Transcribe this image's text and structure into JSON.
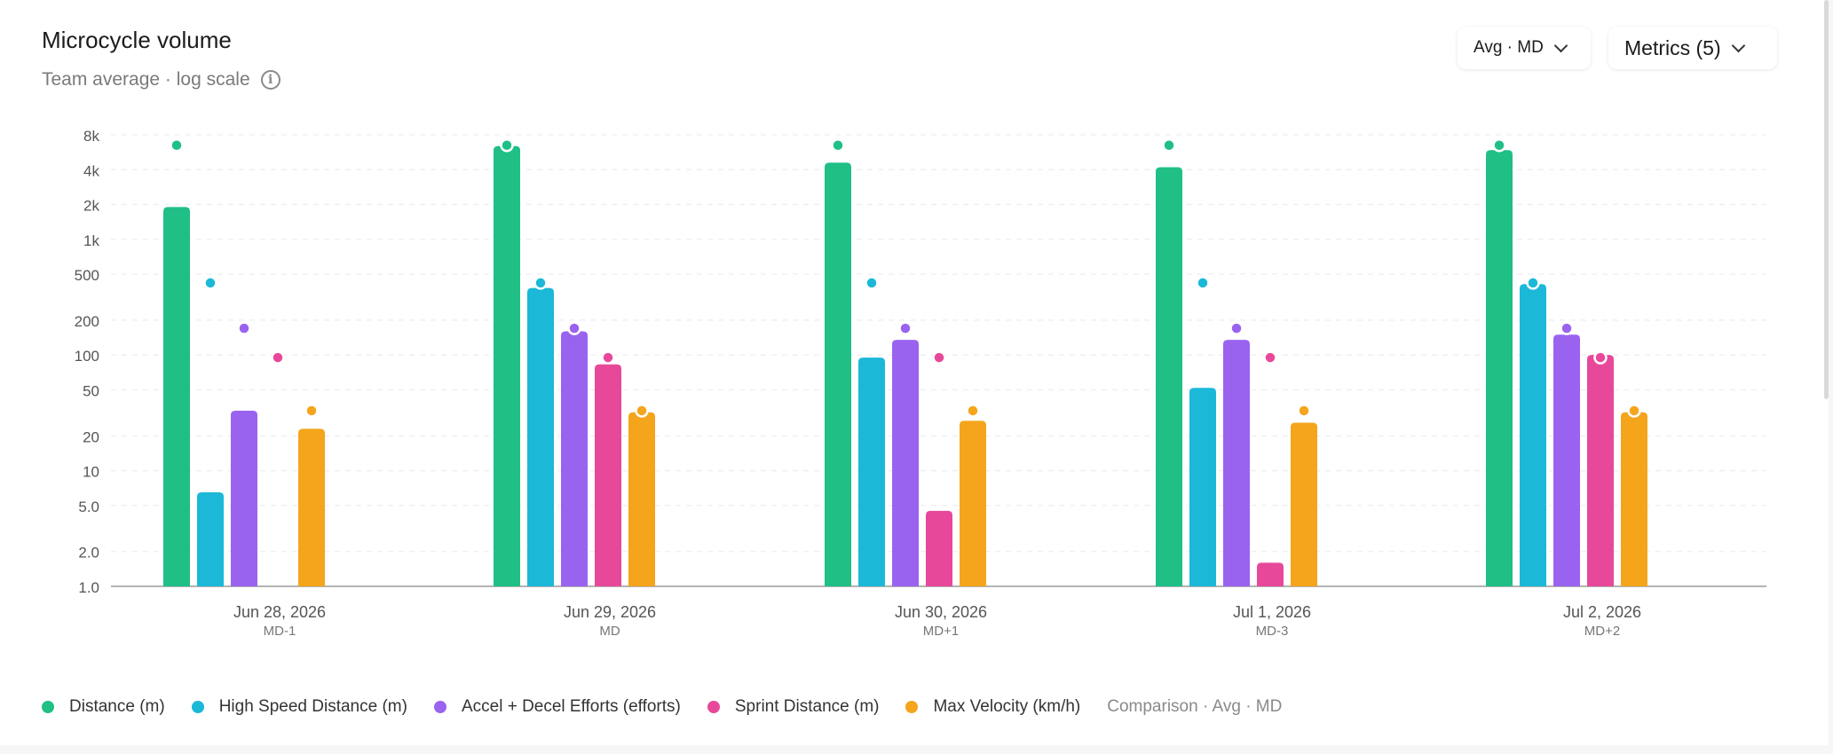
{
  "header": {
    "title": "Microcycle volume",
    "subtitle": "Team average · log scale",
    "avg_button": "Avg · MD",
    "metrics_button": "Metrics (5)"
  },
  "legend_note": "Comparison · Avg · MD",
  "chart_data": {
    "type": "bar",
    "title": "Microcycle volume",
    "y_scale": "log",
    "ylim": [
      1,
      8000
    ],
    "y_ticks": [
      1,
      2,
      5,
      10,
      20,
      50,
      100,
      200,
      500,
      1000,
      2000,
      4000,
      8000
    ],
    "y_tick_labels": [
      "1.0",
      "2.0",
      "5.0",
      "10",
      "20",
      "50",
      "100",
      "200",
      "500",
      "1k",
      "2k",
      "4k",
      "8k"
    ],
    "categories": [
      "Jun 28, 2026",
      "Jun 29, 2026",
      "Jun 30, 2026",
      "Jul 1, 2026",
      "Jul 2, 2026"
    ],
    "category_sublabels": [
      "MD-1",
      "MD",
      "MD+1",
      "MD-3",
      "MD+2"
    ],
    "series": [
      {
        "name": "Distance (m)",
        "color": "#1fbf86",
        "values": [
          1900,
          6400,
          4600,
          4200,
          5900
        ],
        "comparison": 6500
      },
      {
        "name": "High Speed Distance (m)",
        "color": "#1bb8d8",
        "values": [
          6.5,
          380,
          95,
          52,
          410
        ],
        "comparison": 420
      },
      {
        "name": "Accel + Decel Efforts (efforts)",
        "color": "#9a63ef",
        "values": [
          33,
          160,
          135,
          135,
          150
        ],
        "comparison": 170
      },
      {
        "name": "Sprint Distance (m)",
        "color": "#e8489a",
        "values": [
          null,
          83,
          4.5,
          1.6,
          100
        ],
        "comparison": 95
      },
      {
        "name": "Max Velocity (km/h)",
        "color": "#f4a51c",
        "values": [
          23,
          32,
          27,
          26,
          32
        ],
        "comparison": 33
      }
    ],
    "grid": true,
    "legend_position": "bottom"
  }
}
